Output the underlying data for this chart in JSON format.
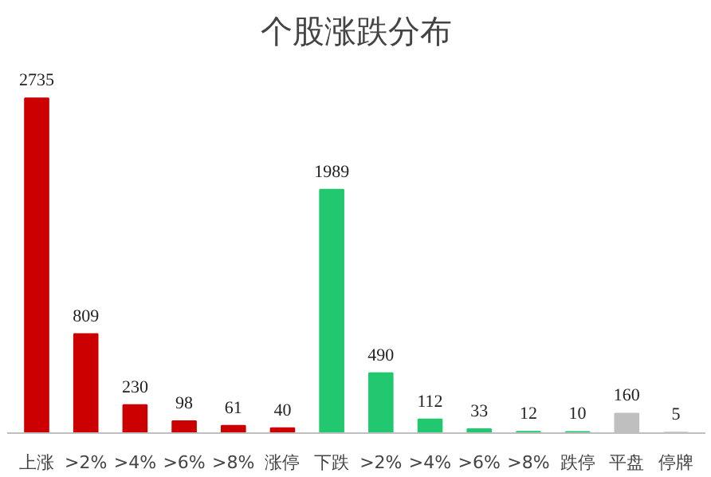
{
  "chart_data": {
    "type": "bar",
    "title": "个股涨跌分布",
    "categories": [
      "上涨",
      ">2%",
      ">4%",
      ">6%",
      ">8%",
      "涨停",
      "下跌",
      ">2%",
      ">4%",
      ">6%",
      ">8%",
      "跌停",
      "平盘",
      "停牌"
    ],
    "values": [
      2735,
      809,
      230,
      98,
      61,
      40,
      1989,
      490,
      112,
      33,
      12,
      10,
      160,
      5
    ],
    "colors": [
      "#cc0000",
      "#cc0000",
      "#cc0000",
      "#cc0000",
      "#cc0000",
      "#cc0000",
      "#22c870",
      "#22c870",
      "#22c870",
      "#22c870",
      "#22c870",
      "#22c870",
      "#bfbfbf",
      "#bfbfbf"
    ],
    "data_labels": true
  }
}
